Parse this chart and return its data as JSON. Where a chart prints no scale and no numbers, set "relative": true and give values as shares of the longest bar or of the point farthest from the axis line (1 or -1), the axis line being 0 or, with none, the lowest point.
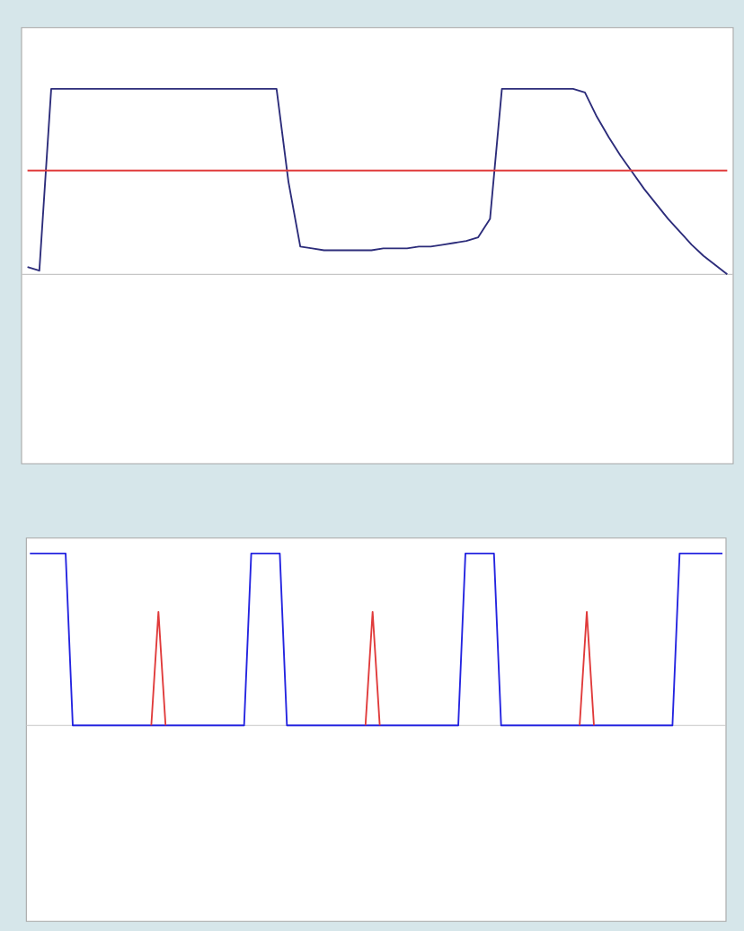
{
  "chart_data": [
    {
      "type": "line",
      "relative": true,
      "categories": [
        null,
        null,
        null,
        null,
        null,
        null,
        null,
        null,
        null,
        null,
        null,
        null,
        null,
        null,
        null,
        null,
        null,
        null,
        null,
        null,
        null,
        null,
        null,
        null,
        null,
        null,
        null,
        null,
        null,
        null,
        null,
        null,
        null,
        null,
        null,
        null,
        null,
        null,
        null,
        null,
        null,
        null,
        null,
        null,
        null,
        null,
        null,
        null,
        null,
        null,
        null,
        null,
        null,
        null,
        null,
        null,
        null,
        null,
        null,
        null
      ],
      "series": [
        {
          "color": "#2c2c7a",
          "values": [
            0.04,
            0.02,
            1,
            1,
            1,
            1,
            1,
            1,
            1,
            1,
            1,
            1,
            1,
            1,
            1,
            1,
            1,
            1,
            1,
            1,
            1,
            1,
            0.5,
            0.15,
            0.14,
            0.13,
            0.13,
            0.13,
            0.13,
            0.13,
            0.14,
            0.14,
            0.14,
            0.15,
            0.15,
            0.16,
            0.17,
            0.18,
            0.2,
            0.3,
            1,
            1,
            1,
            1,
            1,
            1,
            1,
            0.98,
            0.85,
            0.74,
            0.64,
            0.55,
            0.46,
            0.38,
            0.3,
            0.23,
            0.16,
            0.1,
            0.05,
            0
          ]
        },
        {
          "color": "#e03a3a",
          "values": [
            0.56,
            0.56,
            0.56,
            0.56,
            0.56,
            0.56,
            0.56,
            0.56,
            0.56,
            0.56,
            0.56,
            0.56,
            0.56,
            0.56,
            0.56,
            0.56,
            0.56,
            0.56,
            0.56,
            0.56,
            0.56,
            0.56,
            0.56,
            0.56,
            0.56,
            0.56,
            0.56,
            0.56,
            0.56,
            0.56,
            0.56,
            0.56,
            0.56,
            0.56,
            0.56,
            0.56,
            0.56,
            0.56,
            0.56,
            0.56,
            0.56,
            0.56,
            0.56,
            0.56,
            0.56,
            0.56,
            0.56,
            0.56,
            0.56,
            0.56,
            0.56,
            0.56,
            0.56,
            0.56,
            0.56,
            0.56,
            0.56,
            0.56,
            0.56,
            0.56
          ]
        }
      ]
    },
    {
      "type": "line",
      "relative": true,
      "categories": [
        null,
        null,
        null,
        null,
        null,
        null,
        null,
        null,
        null,
        null,
        null,
        null,
        null,
        null,
        null,
        null,
        null,
        null,
        null,
        null,
        null,
        null,
        null,
        null,
        null,
        null,
        null,
        null,
        null,
        null,
        null,
        null,
        null,
        null,
        null,
        null,
        null,
        null,
        null,
        null,
        null,
        null,
        null,
        null,
        null,
        null,
        null,
        null,
        null,
        null,
        null,
        null,
        null,
        null,
        null,
        null,
        null,
        null,
        null,
        null,
        null,
        null,
        null,
        null,
        null,
        null,
        null,
        null,
        null,
        null,
        null,
        null,
        null,
        null,
        null,
        null,
        null,
        null,
        null,
        null,
        null,
        null,
        null,
        null,
        null,
        null,
        null,
        null,
        null,
        null,
        null,
        null,
        null,
        null,
        null,
        null,
        null,
        null
      ],
      "series": [
        {
          "color": "#2424e0",
          "values": [
            1,
            1,
            1,
            1,
            1,
            1,
            0,
            0,
            0,
            0,
            0,
            0,
            0,
            0,
            0,
            0,
            0,
            0,
            0,
            0,
            0,
            0,
            0,
            0,
            0,
            0,
            0,
            0,
            0,
            0,
            0,
            1,
            1,
            1,
            1,
            1,
            0,
            0,
            0,
            0,
            0,
            0,
            0,
            0,
            0,
            0,
            0,
            0,
            0,
            0,
            0,
            0,
            0,
            0,
            0,
            0,
            0,
            0,
            0,
            0,
            0,
            1,
            1,
            1,
            1,
            1,
            0,
            0,
            0,
            0,
            0,
            0,
            0,
            0,
            0,
            0,
            0,
            0,
            0,
            0,
            0,
            0,
            0,
            0,
            0,
            0,
            0,
            0,
            0,
            0,
            0,
            1,
            1,
            1,
            1,
            1,
            1,
            1
          ]
        },
        {
          "color": "#e03a3a",
          "values": [
            null,
            null,
            null,
            null,
            null,
            null,
            null,
            null,
            null,
            null,
            null,
            null,
            null,
            null,
            null,
            null,
            null,
            0,
            0.66,
            0,
            null,
            null,
            null,
            null,
            null,
            null,
            null,
            null,
            null,
            null,
            null,
            null,
            null,
            null,
            null,
            null,
            null,
            null,
            null,
            null,
            null,
            null,
            null,
            null,
            null,
            null,
            null,
            0,
            0.66,
            0,
            null,
            null,
            null,
            null,
            null,
            null,
            null,
            null,
            null,
            null,
            null,
            null,
            null,
            null,
            null,
            null,
            null,
            null,
            null,
            null,
            null,
            null,
            null,
            null,
            null,
            null,
            null,
            0,
            0.66,
            0,
            null,
            null,
            null,
            null,
            null,
            null,
            null,
            null,
            null,
            null,
            null,
            null,
            null,
            null,
            null,
            null,
            null,
            null
          ]
        }
      ]
    }
  ]
}
